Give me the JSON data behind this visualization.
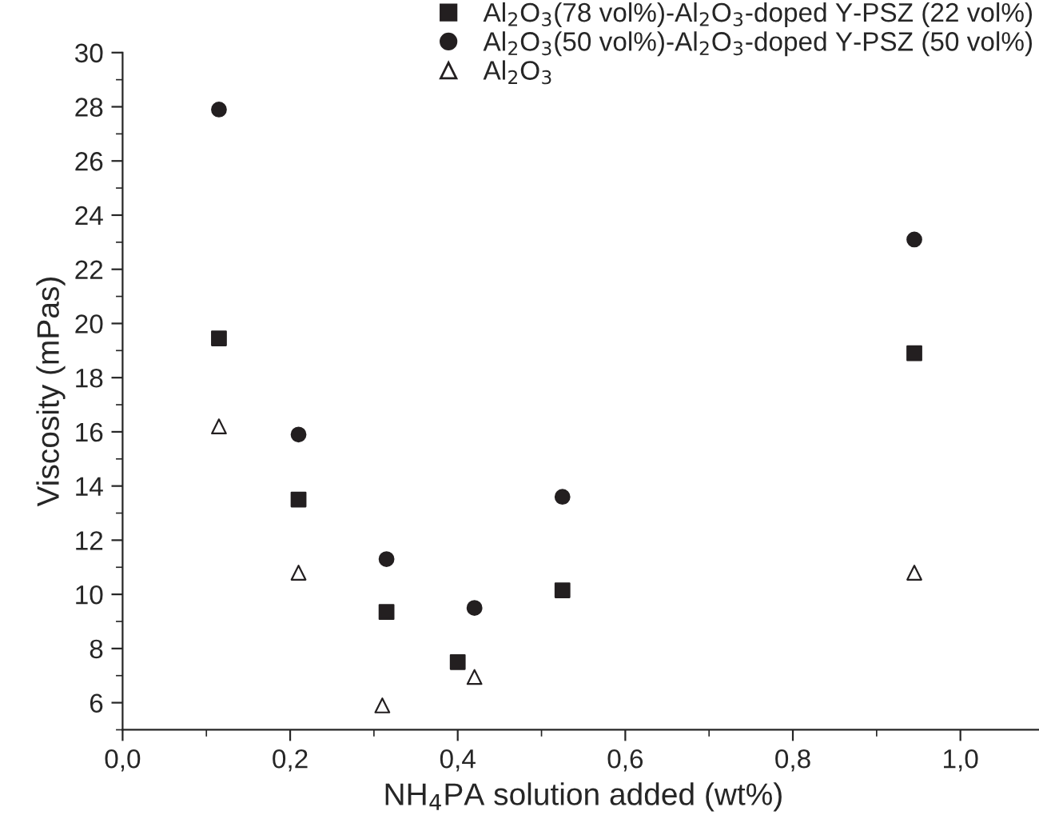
{
  "chart_data": {
    "type": "scatter",
    "xlabel": "NH$_{4}$PA solution added (wt%)",
    "ylabel": "Viscosity (mPas)",
    "series": [
      {
        "name": "Al$_{2}$O$_{3}$(78 vol%)-Al$_{2}$O$_{3}$-doped Y-PSZ (22 vol%)",
        "color": "#231f20",
        "marker": "square",
        "x": [
          0.115,
          0.21,
          0.315,
          0.4,
          0.525,
          0.945
        ],
        "values": [
          19.45,
          13.5,
          9.35,
          7.5,
          10.15,
          18.9
        ]
      },
      {
        "name": "Al$_{2}$O$_{3}$(50 vol%)-Al$_{2}$O$_{3}$-doped Y-PSZ (50 vol%)",
        "color": "#231f20",
        "marker": "circle",
        "x": [
          0.115,
          0.21,
          0.315,
          0.42,
          0.525,
          0.945
        ],
        "values": [
          27.9,
          15.9,
          11.3,
          9.5,
          13.6,
          23.1
        ]
      },
      {
        "name": "Al$_{2}$O$_{3}$",
        "color": "#231f20",
        "marker": "triangle",
        "x": [
          0.115,
          0.21,
          0.31,
          0.42,
          0.945
        ],
        "values": [
          16.2,
          10.8,
          5.9,
          6.95,
          10.8
        ]
      }
    ],
    "xlim": [
      0,
      1.1
    ],
    "xticks": [
      {
        "value": 0,
        "label": "0,0"
      },
      {
        "value": 0.2,
        "label": "0,2"
      },
      {
        "value": 0.4,
        "label": "0,4"
      },
      {
        "value": 0.6,
        "label": "0,6"
      },
      {
        "value": 0.8,
        "label": "0,8"
      },
      {
        "value": 1.0,
        "label": "1,0"
      }
    ],
    "ylim": [
      5,
      30
    ],
    "yticks": [
      6,
      8,
      10,
      12,
      14,
      16,
      18,
      20,
      22,
      24,
      26,
      28,
      30
    ],
    "grid": false,
    "legend": "top"
  }
}
